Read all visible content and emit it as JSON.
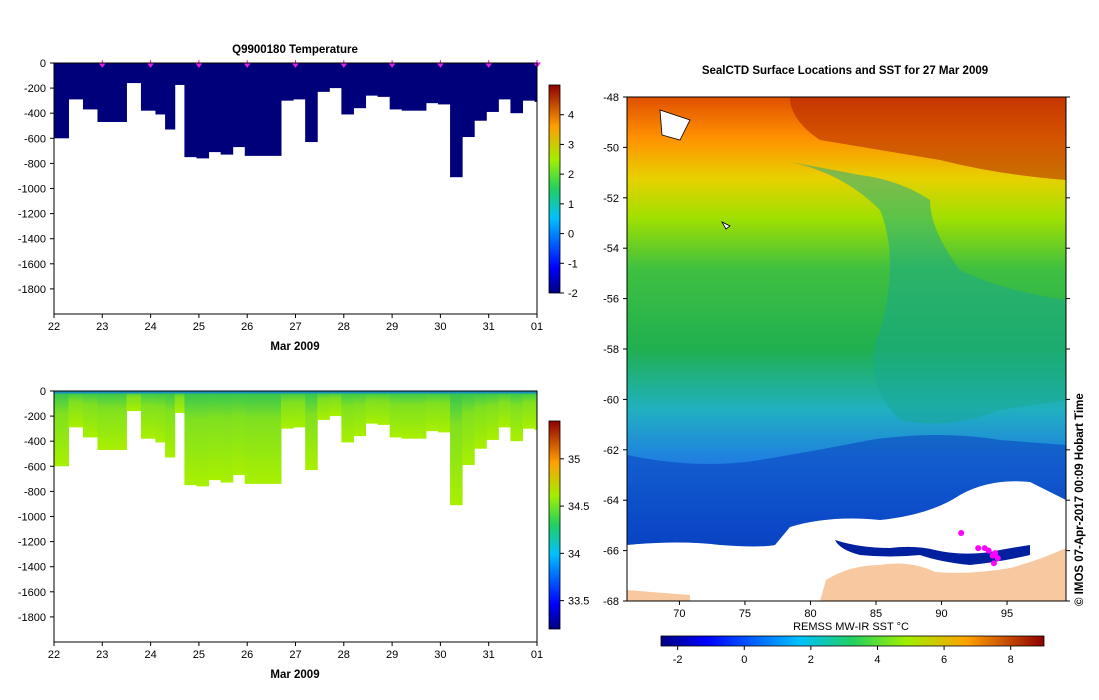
{
  "chart_data": [
    {
      "type": "heatmap",
      "title": "Q9900180  Temperature",
      "xlabel": "Mar 2009",
      "x_tick_labels": [
        "22",
        "23",
        "24",
        "25",
        "26",
        "27",
        "28",
        "29",
        "30",
        "31",
        "01"
      ],
      "y_tick_labels": [
        "0",
        "-200",
        "-400",
        "-600",
        "-800",
        "-1000",
        "-1200",
        "-1400",
        "-1600",
        "-1800"
      ],
      "ylim": [
        -2000,
        0
      ],
      "colorbar": {
        "min": -2,
        "max": 5,
        "tick_labels": [
          "-2",
          "-1",
          "0",
          "1",
          "2",
          "3",
          "4"
        ]
      },
      "profile_times_day": [
        22.0,
        22.3,
        22.6,
        22.9,
        23.2,
        23.5,
        23.8,
        24.1,
        24.3,
        24.5,
        24.7,
        24.95,
        25.2,
        25.45,
        25.7,
        25.95,
        26.2,
        26.45,
        26.7,
        26.95,
        27.2,
        27.45,
        27.7,
        27.95,
        28.2,
        28.45,
        28.7,
        28.95,
        29.2,
        29.45,
        29.7,
        29.95,
        30.2,
        30.45,
        30.7,
        30.95,
        31.2,
        31.45,
        31.7,
        31.95
      ],
      "profile_max_depth_m": [
        600,
        290,
        370,
        470,
        470,
        160,
        380,
        410,
        530,
        175,
        750,
        760,
        710,
        730,
        670,
        740,
        740,
        740,
        300,
        290,
        630,
        230,
        200,
        410,
        360,
        260,
        270,
        370,
        380,
        380,
        320,
        330,
        910,
        590,
        460,
        390,
        290,
        400,
        300,
        310
      ],
      "value_at_surface": -2,
      "markers_day": [
        23,
        24,
        25,
        26,
        27,
        28,
        29,
        30,
        31,
        32
      ],
      "marker_color": "#e020e0"
    },
    {
      "type": "heatmap",
      "title": "",
      "xlabel": "Mar 2009",
      "x_tick_labels": [
        "22",
        "23",
        "24",
        "25",
        "26",
        "27",
        "28",
        "29",
        "30",
        "31",
        "01"
      ],
      "y_tick_labels": [
        "0",
        "-200",
        "-400",
        "-600",
        "-800",
        "-1000",
        "-1200",
        "-1400",
        "-1600",
        "-1800"
      ],
      "ylim": [
        -2000,
        0
      ],
      "colorbar": {
        "min": 33.2,
        "max": 35.4,
        "tick_labels": [
          "33.5",
          "34",
          "34.5",
          "35"
        ]
      },
      "deep_value": 34.6
    },
    {
      "type": "heatmap",
      "title": "SealCTD Surface Locations and SST for 27 Mar 2009",
      "xlabel": "",
      "x_tick_labels": [
        "70",
        "75",
        "80",
        "85",
        "90",
        "95"
      ],
      "y_tick_labels": [
        "-48",
        "-50",
        "-52",
        "-54",
        "-56",
        "-58",
        "-60",
        "-62",
        "-64",
        "-66",
        "-68"
      ],
      "xlim": [
        66,
        99.5
      ],
      "ylim": [
        -68,
        -48
      ],
      "colorbar_label": "REMSS MW-IR SST °C",
      "colorbar": {
        "min": -2.5,
        "max": 9,
        "tick_labels": [
          "-2",
          "0",
          "2",
          "4",
          "6",
          "8"
        ]
      },
      "seal_locations_lonlat": [
        [
          91.5,
          -65.3
        ],
        [
          92.8,
          -65.9
        ],
        [
          93.3,
          -65.9
        ],
        [
          93.6,
          -66.0
        ],
        [
          93.9,
          -66.2
        ],
        [
          94.1,
          -66.1
        ],
        [
          94.3,
          -66.3
        ],
        [
          94.0,
          -66.5
        ]
      ],
      "seal_color": "#ff00ff",
      "credit": "© IMOS 07-Apr-2017 00:09 Hobart Time"
    }
  ]
}
